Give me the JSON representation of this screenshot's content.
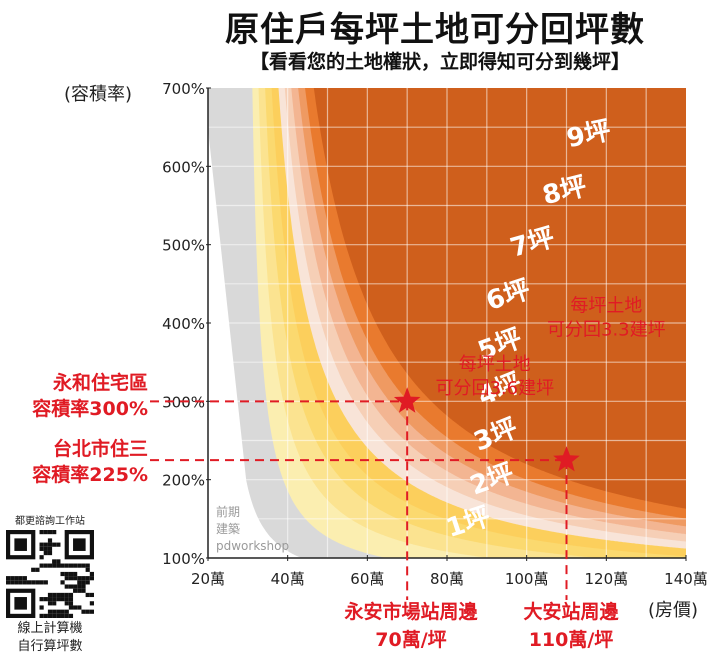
{
  "header": {
    "title": "原住戶每坪土地可分回坪數",
    "subtitle": "【看看您的土地權狀，立即得知可分到幾坪】"
  },
  "chart_data": {
    "type": "area",
    "title": "原住戶每坪土地可分回坪數",
    "subtitle": "【看看您的土地權狀，立即得知可分到幾坪】",
    "ylabel": "(容積率)",
    "xlabel": "(房價)",
    "xlim": [
      20,
      140
    ],
    "ylim": [
      100,
      700
    ],
    "x_ticks": [
      "20萬",
      "40萬",
      "60萬",
      "80萬",
      "100萬",
      "120萬",
      "140萬"
    ],
    "y_ticks": [
      "100%",
      "200%",
      "300%",
      "400%",
      "500%",
      "600%",
      "700%"
    ],
    "grid": true,
    "bands": [
      {
        "label": "1坪",
        "color": "#fbeeb0"
      },
      {
        "label": "2坪",
        "color": "#fbe390"
      },
      {
        "label": "3坪",
        "color": "#fbd96f"
      },
      {
        "label": "4坪",
        "color": "#fccf5c"
      },
      {
        "label": "5坪",
        "color": "#f8e4d8"
      },
      {
        "label": "6坪",
        "color": "#f6cfb6"
      },
      {
        "label": "7坪",
        "color": "#f3b592"
      },
      {
        "label": "8坪",
        "color": "#ef9a62"
      },
      {
        "label": "9坪",
        "color": "#e97a2e"
      }
    ],
    "points": [
      {
        "x": 70,
        "y": 300,
        "label_lines": [
          "每坪土地",
          "可分回3.6建坪"
        ]
      },
      {
        "x": 110,
        "y": 225,
        "label_lines": [
          "每坪土地",
          "可分回3.3建坪"
        ]
      }
    ],
    "colors": {
      "accent": "#e01b24",
      "outside": "#d9d9d9",
      "top_band": "#cf5f1c"
    }
  },
  "callouts": {
    "left_1": [
      "永和住宅區",
      "容積率300%"
    ],
    "left_2": [
      "台北市住三",
      "容積率225%"
    ],
    "bottom_1": [
      "永安市場站周邊",
      "70萬/坪"
    ],
    "bottom_2": [
      "大安站周邊",
      "110萬/坪"
    ]
  },
  "watermark": [
    "前期",
    "建築",
    "pdworkshop"
  ],
  "qr": {
    "caption": "都更諮詢工作站",
    "footer": [
      "線上計算機",
      "自行算坪數"
    ]
  }
}
